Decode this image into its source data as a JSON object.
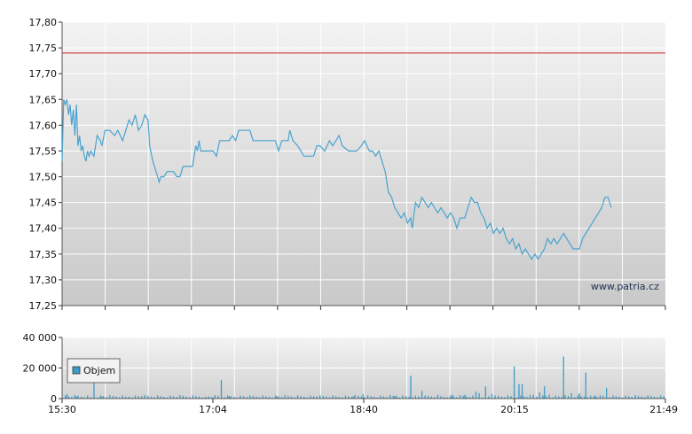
{
  "watermark": "www.patria.cz",
  "legend": {
    "label": "Objem"
  },
  "colors": {
    "price_line": "#4aa3cf",
    "reference_line": "#cc2222",
    "volume_bar": "#3d9cc9"
  },
  "chart_data": [
    {
      "type": "line",
      "name": "price",
      "ylim": [
        17.25,
        17.8
      ],
      "yticks": [
        "17,25",
        "17,30",
        "17,35",
        "17,40",
        "17,45",
        "17,50",
        "17,55",
        "17,60",
        "17,65",
        "17,70",
        "17,75",
        "17,80"
      ],
      "reference_value": 17.74,
      "x_minutes_range": [
        0,
        379
      ],
      "points": [
        [
          0,
          17.53
        ],
        [
          1,
          17.65
        ],
        [
          2,
          17.64
        ],
        [
          3,
          17.65
        ],
        [
          4,
          17.62
        ],
        [
          5,
          17.64
        ],
        [
          6,
          17.6
        ],
        [
          7,
          17.63
        ],
        [
          8,
          17.58
        ],
        [
          9,
          17.64
        ],
        [
          10,
          17.56
        ],
        [
          11,
          17.58
        ],
        [
          12,
          17.55
        ],
        [
          13,
          17.56
        ],
        [
          14,
          17.54
        ],
        [
          15,
          17.53
        ],
        [
          16,
          17.55
        ],
        [
          17,
          17.54
        ],
        [
          18,
          17.55
        ],
        [
          20,
          17.54
        ],
        [
          22,
          17.58
        ],
        [
          24,
          17.57
        ],
        [
          25,
          17.56
        ],
        [
          27,
          17.59
        ],
        [
          30,
          17.59
        ],
        [
          33,
          17.58
        ],
        [
          35,
          17.59
        ],
        [
          38,
          17.57
        ],
        [
          40,
          17.59
        ],
        [
          42,
          17.61
        ],
        [
          44,
          17.6
        ],
        [
          46,
          17.62
        ],
        [
          48,
          17.59
        ],
        [
          50,
          17.6
        ],
        [
          52,
          17.62
        ],
        [
          54,
          17.61
        ],
        [
          55,
          17.56
        ],
        [
          57,
          17.53
        ],
        [
          59,
          17.51
        ],
        [
          60,
          17.5
        ],
        [
          61,
          17.49
        ],
        [
          62,
          17.5
        ],
        [
          64,
          17.5
        ],
        [
          66,
          17.51
        ],
        [
          70,
          17.51
        ],
        [
          72,
          17.5
        ],
        [
          74,
          17.5
        ],
        [
          76,
          17.52
        ],
        [
          80,
          17.52
        ],
        [
          82,
          17.52
        ],
        [
          84,
          17.56
        ],
        [
          85,
          17.55
        ],
        [
          86,
          17.57
        ],
        [
          87,
          17.55
        ],
        [
          90,
          17.55
        ],
        [
          95,
          17.55
        ],
        [
          97,
          17.54
        ],
        [
          99,
          17.57
        ],
        [
          105,
          17.57
        ],
        [
          107,
          17.58
        ],
        [
          109,
          17.57
        ],
        [
          111,
          17.59
        ],
        [
          118,
          17.59
        ],
        [
          120,
          17.57
        ],
        [
          125,
          17.57
        ],
        [
          130,
          17.57
        ],
        [
          134,
          17.57
        ],
        [
          136,
          17.55
        ],
        [
          138,
          17.57
        ],
        [
          142,
          17.57
        ],
        [
          143,
          17.59
        ],
        [
          145,
          17.57
        ],
        [
          148,
          17.56
        ],
        [
          150,
          17.55
        ],
        [
          152,
          17.54
        ],
        [
          155,
          17.54
        ],
        [
          158,
          17.54
        ],
        [
          160,
          17.56
        ],
        [
          162,
          17.56
        ],
        [
          165,
          17.55
        ],
        [
          168,
          17.57
        ],
        [
          170,
          17.56
        ],
        [
          172,
          17.57
        ],
        [
          174,
          17.58
        ],
        [
          176,
          17.56
        ],
        [
          180,
          17.55
        ],
        [
          185,
          17.55
        ],
        [
          188,
          17.56
        ],
        [
          190,
          17.57
        ],
        [
          193,
          17.55
        ],
        [
          195,
          17.55
        ],
        [
          197,
          17.54
        ],
        [
          199,
          17.55
        ],
        [
          201,
          17.53
        ],
        [
          203,
          17.51
        ],
        [
          205,
          17.47
        ],
        [
          207,
          17.46
        ],
        [
          209,
          17.44
        ],
        [
          211,
          17.43
        ],
        [
          213,
          17.42
        ],
        [
          215,
          17.43
        ],
        [
          217,
          17.41
        ],
        [
          219,
          17.42
        ],
        [
          220,
          17.4
        ],
        [
          222,
          17.45
        ],
        [
          224,
          17.44
        ],
        [
          226,
          17.46
        ],
        [
          228,
          17.45
        ],
        [
          230,
          17.44
        ],
        [
          232,
          17.45
        ],
        [
          234,
          17.44
        ],
        [
          236,
          17.43
        ],
        [
          238,
          17.44
        ],
        [
          240,
          17.43
        ],
        [
          242,
          17.42
        ],
        [
          244,
          17.43
        ],
        [
          246,
          17.42
        ],
        [
          248,
          17.4
        ],
        [
          250,
          17.42
        ],
        [
          253,
          17.42
        ],
        [
          255,
          17.44
        ],
        [
          257,
          17.46
        ],
        [
          259,
          17.45
        ],
        [
          261,
          17.45
        ],
        [
          263,
          17.43
        ],
        [
          265,
          17.42
        ],
        [
          267,
          17.4
        ],
        [
          269,
          17.41
        ],
        [
          271,
          17.39
        ],
        [
          273,
          17.4
        ],
        [
          275,
          17.39
        ],
        [
          277,
          17.4
        ],
        [
          279,
          17.38
        ],
        [
          281,
          17.37
        ],
        [
          283,
          17.38
        ],
        [
          285,
          17.36
        ],
        [
          287,
          17.37
        ],
        [
          289,
          17.35
        ],
        [
          291,
          17.36
        ],
        [
          293,
          17.35
        ],
        [
          295,
          17.34
        ],
        [
          297,
          17.35
        ],
        [
          299,
          17.34
        ],
        [
          301,
          17.35
        ],
        [
          303,
          17.36
        ],
        [
          305,
          17.38
        ],
        [
          307,
          17.37
        ],
        [
          309,
          17.38
        ],
        [
          311,
          17.37
        ],
        [
          313,
          17.38
        ],
        [
          315,
          17.39
        ],
        [
          317,
          17.38
        ],
        [
          319,
          17.37
        ],
        [
          321,
          17.36
        ],
        [
          323,
          17.36
        ],
        [
          325,
          17.36
        ],
        [
          327,
          17.38
        ],
        [
          329,
          17.39
        ],
        [
          331,
          17.4
        ],
        [
          333,
          17.41
        ],
        [
          335,
          17.42
        ],
        [
          337,
          17.43
        ],
        [
          339,
          17.44
        ],
        [
          341,
          17.46
        ],
        [
          343,
          17.46
        ],
        [
          345,
          17.44
        ]
      ]
    },
    {
      "type": "bar",
      "name": "volume",
      "series_name": "Objem",
      "ylim": [
        0,
        40000
      ],
      "yticks": [
        "0",
        "20 000",
        "40 000"
      ],
      "xtick_labels": [
        "15:30",
        "17:04",
        "18:40",
        "20:15",
        "21:49"
      ],
      "spikes": [
        [
          3,
          3000
        ],
        [
          9,
          1500
        ],
        [
          18,
          1000
        ],
        [
          20,
          14000
        ],
        [
          25,
          1500
        ],
        [
          40,
          1200
        ],
        [
          50,
          1600
        ],
        [
          90,
          1200
        ],
        [
          100,
          12000
        ],
        [
          105,
          1500
        ],
        [
          135,
          1500
        ],
        [
          160,
          1500
        ],
        [
          183,
          1500
        ],
        [
          189,
          3000
        ],
        [
          209,
          1800
        ],
        [
          210,
          1800
        ],
        [
          219,
          15000
        ],
        [
          226,
          5000
        ],
        [
          228,
          2000
        ],
        [
          236,
          2500
        ],
        [
          245,
          2500
        ],
        [
          253,
          2500
        ],
        [
          260,
          4500
        ],
        [
          262,
          3500
        ],
        [
          266,
          8000
        ],
        [
          270,
          3000
        ],
        [
          272,
          2000
        ],
        [
          284,
          21000
        ],
        [
          287,
          9500
        ],
        [
          289,
          9500
        ],
        [
          296,
          2500
        ],
        [
          300,
          4000
        ],
        [
          303,
          8000
        ],
        [
          306,
          2500
        ],
        [
          315,
          27500
        ],
        [
          320,
          3500
        ],
        [
          325,
          3500
        ],
        [
          329,
          17000
        ],
        [
          335,
          2000
        ],
        [
          342,
          7000
        ],
        [
          346,
          2000
        ]
      ],
      "baseline": 1500
    }
  ]
}
